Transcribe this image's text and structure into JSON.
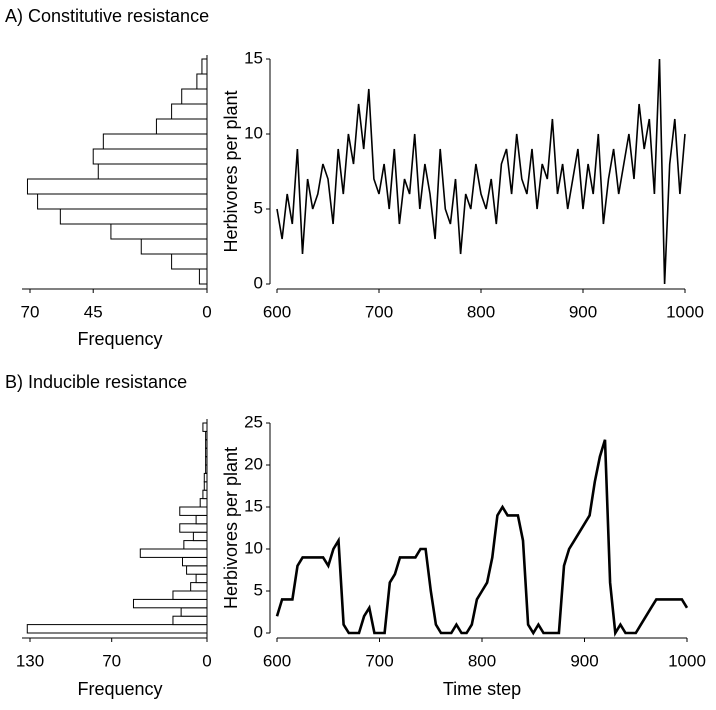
{
  "chart_data": [
    {
      "type": "histogram",
      "title": "A) Constitutive resistance",
      "orientation": "horizontal",
      "xlabel": "Frequency",
      "bins": [
        0,
        1,
        2,
        3,
        4,
        5,
        6,
        7,
        8,
        9,
        10,
        11,
        12,
        13,
        14,
        15
      ],
      "counts": [
        3,
        14,
        26,
        38,
        58,
        67,
        71,
        43,
        45,
        41,
        20,
        14,
        10,
        4,
        2
      ],
      "xlim": [
        70,
        0
      ],
      "xticks": [
        70,
        45,
        0
      ],
      "ylim": [
        0,
        15
      ]
    },
    {
      "type": "line",
      "ylabel": "Herbivores per plant",
      "color": "#000000",
      "x": [
        600,
        605,
        610,
        615,
        620,
        625,
        630,
        635,
        640,
        645,
        650,
        655,
        660,
        665,
        670,
        675,
        680,
        685,
        690,
        695,
        700,
        705,
        710,
        715,
        720,
        725,
        730,
        735,
        740,
        745,
        750,
        755,
        760,
        765,
        770,
        775,
        780,
        785,
        790,
        795,
        800,
        805,
        810,
        815,
        820,
        825,
        830,
        835,
        840,
        845,
        850,
        855,
        860,
        865,
        870,
        875,
        880,
        885,
        890,
        895,
        900,
        905,
        910,
        915,
        920,
        925,
        930,
        935,
        940,
        945,
        950,
        955,
        960,
        965,
        970,
        975,
        980,
        985,
        990,
        995,
        1000
      ],
      "values": [
        5,
        3,
        6,
        4,
        9,
        2,
        7,
        5,
        6,
        8,
        7,
        4,
        9,
        6,
        10,
        8,
        12,
        9,
        13,
        7,
        6,
        8,
        5,
        9,
        4,
        7,
        6,
        10,
        5,
        8,
        6,
        3,
        9,
        5,
        4,
        7,
        2,
        6,
        5,
        8,
        6,
        5,
        7,
        4,
        8,
        9,
        6,
        10,
        7,
        6,
        9,
        5,
        8,
        7,
        11,
        6,
        8,
        5,
        7,
        9,
        5,
        8,
        6,
        10,
        4,
        7,
        9,
        6,
        8,
        10,
        7,
        12,
        9,
        11,
        6,
        15,
        0,
        8,
        11,
        6,
        10
      ],
      "xlim": [
        600,
        1000
      ],
      "xticks": [
        600,
        700,
        800,
        900,
        1000
      ],
      "ylim": [
        0,
        15
      ],
      "yticks": [
        0,
        5,
        10,
        15
      ]
    },
    {
      "type": "histogram",
      "title": "B) Inducible resistance",
      "orientation": "horizontal",
      "xlabel": "Frequency",
      "bins": [
        0,
        1,
        2,
        3,
        4,
        5,
        6,
        7,
        8,
        9,
        10,
        11,
        12,
        13,
        14,
        15,
        16,
        17,
        18,
        19,
        20,
        21,
        22,
        23,
        24,
        25
      ],
      "counts": [
        132,
        25,
        19,
        54,
        25,
        12,
        8,
        15,
        18,
        49,
        17,
        10,
        20,
        8,
        20,
        5,
        3,
        2,
        2,
        1,
        1,
        1,
        1,
        1,
        3
      ],
      "xlim": [
        130,
        0
      ],
      "xticks": [
        130,
        70,
        0
      ],
      "ylim": [
        0,
        25
      ]
    },
    {
      "type": "line",
      "ylabel": "Herbivores per plant",
      "xlabel": "Time step",
      "color": "#000000",
      "x": [
        600,
        605,
        610,
        615,
        620,
        625,
        630,
        635,
        640,
        645,
        650,
        655,
        660,
        665,
        670,
        675,
        680,
        685,
        690,
        695,
        700,
        705,
        710,
        715,
        720,
        725,
        730,
        735,
        740,
        745,
        750,
        755,
        760,
        765,
        770,
        775,
        780,
        785,
        790,
        795,
        800,
        805,
        810,
        815,
        820,
        825,
        830,
        835,
        840,
        845,
        850,
        855,
        860,
        865,
        870,
        875,
        880,
        885,
        890,
        895,
        900,
        905,
        910,
        915,
        920,
        925,
        930,
        935,
        940,
        945,
        950,
        955,
        960,
        965,
        970,
        975,
        980,
        985,
        990,
        995,
        1000
      ],
      "values": [
        2,
        4,
        4,
        4,
        8,
        9,
        9,
        9,
        9,
        9,
        8,
        10,
        11,
        1,
        0,
        0,
        0,
        2,
        3,
        0,
        0,
        0,
        6,
        7,
        9,
        9,
        9,
        9,
        10,
        10,
        5,
        1,
        0,
        0,
        0,
        1,
        0,
        0,
        1,
        4,
        5,
        6,
        9,
        14,
        15,
        14,
        14,
        14,
        11,
        1,
        0,
        1,
        0,
        0,
        0,
        0,
        8,
        10,
        11,
        12,
        13,
        14,
        18,
        21,
        23,
        6,
        0,
        1,
        0,
        0,
        0,
        1,
        2,
        3,
        4,
        4,
        4,
        4,
        4,
        4,
        3
      ],
      "xlim": [
        600,
        1000
      ],
      "xticks": [
        600,
        700,
        800,
        900,
        1000
      ],
      "ylim": [
        0,
        25
      ],
      "yticks": [
        0,
        5,
        10,
        15,
        20,
        25
      ]
    }
  ]
}
